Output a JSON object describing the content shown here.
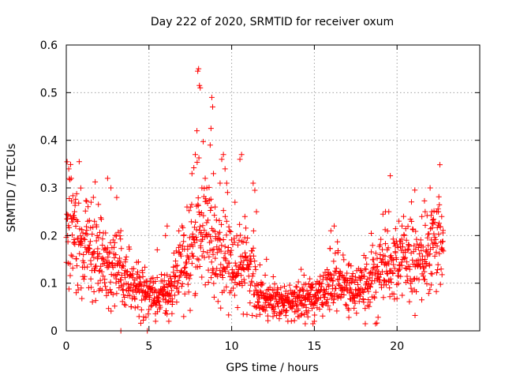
{
  "chart_data": {
    "type": "scatter",
    "title": "Day 222 of 2020, SRMTID for receiver oxum",
    "xlabel": "GPS time / hours",
    "ylabel": "SRMTID / TECUs",
    "xlim": [
      0,
      25
    ],
    "ylim": [
      0,
      0.6
    ],
    "x_ticks": [
      0,
      5,
      10,
      15,
      20
    ],
    "x_tick_labels": [
      "0",
      "5",
      "10",
      "15",
      "20"
    ],
    "y_ticks": [
      0,
      0.1,
      0.2,
      0.3,
      0.4,
      0.5,
      0.6
    ],
    "y_tick_labels": [
      "0",
      "0.1",
      "0.2",
      "0.3",
      "0.4",
      "0.5",
      "0.6"
    ],
    "grid": true,
    "marker": "+",
    "series_color": "#ff0000",
    "trend": [
      [
        0.0,
        0.2
      ],
      [
        0.5,
        0.19
      ],
      [
        1.0,
        0.17
      ],
      [
        1.5,
        0.16
      ],
      [
        2.0,
        0.15
      ],
      [
        2.5,
        0.13
      ],
      [
        3.0,
        0.12
      ],
      [
        3.5,
        0.11
      ],
      [
        4.0,
        0.09
      ],
      [
        4.5,
        0.08
      ],
      [
        5.0,
        0.075
      ],
      [
        5.5,
        0.07
      ],
      [
        6.0,
        0.08
      ],
      [
        6.5,
        0.09
      ],
      [
        7.0,
        0.13
      ],
      [
        7.5,
        0.17
      ],
      [
        8.0,
        0.22
      ],
      [
        8.5,
        0.2
      ],
      [
        9.0,
        0.16
      ],
      [
        9.5,
        0.19
      ],
      [
        10.0,
        0.14
      ],
      [
        10.5,
        0.13
      ],
      [
        11.0,
        0.15
      ],
      [
        11.5,
        0.08
      ],
      [
        12.0,
        0.07
      ],
      [
        12.5,
        0.065
      ],
      [
        13.0,
        0.06
      ],
      [
        13.5,
        0.065
      ],
      [
        14.0,
        0.06
      ],
      [
        14.5,
        0.07
      ],
      [
        15.0,
        0.07
      ],
      [
        15.5,
        0.08
      ],
      [
        16.0,
        0.1
      ],
      [
        16.5,
        0.11
      ],
      [
        17.0,
        0.1
      ],
      [
        17.5,
        0.09
      ],
      [
        18.0,
        0.1
      ],
      [
        18.5,
        0.11
      ],
      [
        19.0,
        0.12
      ],
      [
        19.5,
        0.13
      ],
      [
        20.0,
        0.15
      ],
      [
        20.5,
        0.15
      ],
      [
        21.0,
        0.16
      ],
      [
        21.5,
        0.15
      ],
      [
        22.0,
        0.16
      ],
      [
        22.5,
        0.18
      ],
      [
        22.8,
        0.18
      ]
    ],
    "peaks": [
      {
        "x": 0.05,
        "y": 0.355
      },
      {
        "x": 0.15,
        "y": 0.34
      },
      {
        "x": 0.3,
        "y": 0.32
      },
      {
        "x": 0.5,
        "y": 0.25
      },
      {
        "x": 1.3,
        "y": 0.23
      },
      {
        "x": 1.5,
        "y": 0.27
      },
      {
        "x": 1.7,
        "y": 0.23
      },
      {
        "x": 2.5,
        "y": 0.32
      },
      {
        "x": 2.7,
        "y": 0.3
      },
      {
        "x": 3.05,
        "y": 0.28
      },
      {
        "x": 3.3,
        "y": 0.21
      },
      {
        "x": 5.5,
        "y": 0.17
      },
      {
        "x": 6.0,
        "y": 0.2
      },
      {
        "x": 6.1,
        "y": 0.22
      },
      {
        "x": 7.0,
        "y": 0.22
      },
      {
        "x": 7.3,
        "y": 0.26
      },
      {
        "x": 7.6,
        "y": 0.33
      },
      {
        "x": 7.8,
        "y": 0.37
      },
      {
        "x": 7.9,
        "y": 0.42
      },
      {
        "x": 7.95,
        "y": 0.545
      },
      {
        "x": 8.0,
        "y": 0.55
      },
      {
        "x": 8.05,
        "y": 0.515
      },
      {
        "x": 8.1,
        "y": 0.51
      },
      {
        "x": 8.2,
        "y": 0.3
      },
      {
        "x": 8.4,
        "y": 0.32
      },
      {
        "x": 8.5,
        "y": 0.3
      },
      {
        "x": 8.7,
        "y": 0.39
      },
      {
        "x": 8.75,
        "y": 0.425
      },
      {
        "x": 8.8,
        "y": 0.49
      },
      {
        "x": 8.85,
        "y": 0.47
      },
      {
        "x": 8.9,
        "y": 0.33
      },
      {
        "x": 9.0,
        "y": 0.26
      },
      {
        "x": 9.3,
        "y": 0.31
      },
      {
        "x": 9.4,
        "y": 0.36
      },
      {
        "x": 9.5,
        "y": 0.37
      },
      {
        "x": 9.6,
        "y": 0.34
      },
      {
        "x": 9.7,
        "y": 0.31
      },
      {
        "x": 10.2,
        "y": 0.27
      },
      {
        "x": 10.5,
        "y": 0.36
      },
      {
        "x": 10.6,
        "y": 0.37
      },
      {
        "x": 10.8,
        "y": 0.24
      },
      {
        "x": 11.3,
        "y": 0.31
      },
      {
        "x": 11.4,
        "y": 0.295
      },
      {
        "x": 11.5,
        "y": 0.25
      },
      {
        "x": 16.0,
        "y": 0.21
      },
      {
        "x": 16.2,
        "y": 0.22
      },
      {
        "x": 19.3,
        "y": 0.25
      },
      {
        "x": 19.5,
        "y": 0.25
      },
      {
        "x": 20.3,
        "y": 0.22
      },
      {
        "x": 21.5,
        "y": 0.24
      },
      {
        "x": 21.7,
        "y": 0.25
      },
      {
        "x": 22.0,
        "y": 0.3
      },
      {
        "x": 22.1,
        "y": 0.25
      },
      {
        "x": 22.5,
        "y": 0.25
      },
      {
        "x": 22.7,
        "y": 0.24
      }
    ],
    "lows": [
      {
        "x": 0.6,
        "y": 0.08
      },
      {
        "x": 0.9,
        "y": 0.09
      },
      {
        "x": 3.3,
        "y": 0.0
      },
      {
        "x": 4.4,
        "y": 0.03
      },
      {
        "x": 4.9,
        "y": 0.0
      },
      {
        "x": 5.4,
        "y": 0.02
      },
      {
        "x": 6.2,
        "y": 0.02
      },
      {
        "x": 7.1,
        "y": 0.03
      },
      {
        "x": 12.5,
        "y": 0.03
      },
      {
        "x": 13.4,
        "y": 0.02
      },
      {
        "x": 14.0,
        "y": 0.03
      },
      {
        "x": 15.0,
        "y": 0.02
      }
    ]
  }
}
